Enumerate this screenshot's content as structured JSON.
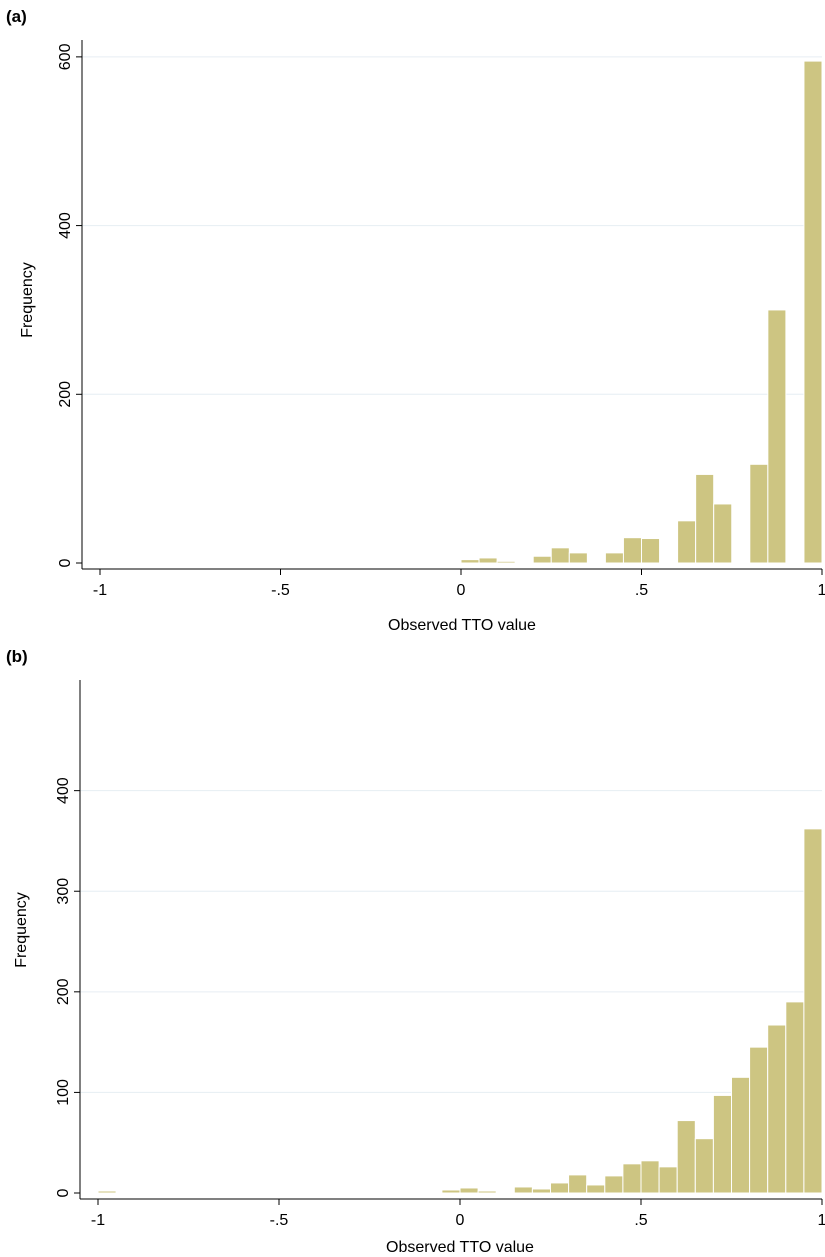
{
  "figure": {
    "background": "#ffffff",
    "bar_fill": "#cdc582",
    "bar_stroke": "#ffffff",
    "grid_color": "#e6eef3",
    "axis_color": "#000000"
  },
  "chart_data": [
    {
      "panel_label": "(a)",
      "type": "bar",
      "histogram": true,
      "xlabel": "Observed TTO value",
      "ylabel": "Frequency",
      "xlim": [
        -1,
        1
      ],
      "ylim": [
        0,
        620
      ],
      "bin_width": 0.05,
      "grid": true,
      "x_ticks": [
        -1,
        -0.5,
        0,
        0.5,
        1
      ],
      "x_tick_labels": [
        "-1",
        "-.5",
        "0",
        ".5",
        "1"
      ],
      "y_ticks": [
        0,
        200,
        400,
        600
      ],
      "y_tick_labels": [
        "0",
        "200",
        "400",
        "600"
      ],
      "bins": [
        {
          "start": -1.0,
          "value": 1
        },
        {
          "start": -0.15,
          "value": 1
        },
        {
          "start": 0.0,
          "value": 4
        },
        {
          "start": 0.05,
          "value": 6
        },
        {
          "start": 0.1,
          "value": 2
        },
        {
          "start": 0.2,
          "value": 8
        },
        {
          "start": 0.25,
          "value": 18
        },
        {
          "start": 0.3,
          "value": 12
        },
        {
          "start": 0.4,
          "value": 12
        },
        {
          "start": 0.45,
          "value": 30
        },
        {
          "start": 0.5,
          "value": 29
        },
        {
          "start": 0.6,
          "value": 50
        },
        {
          "start": 0.65,
          "value": 105
        },
        {
          "start": 0.7,
          "value": 70
        },
        {
          "start": 0.8,
          "value": 117
        },
        {
          "start": 0.85,
          "value": 300
        },
        {
          "start": 0.95,
          "value": 595
        }
      ]
    },
    {
      "panel_label": "(b)",
      "type": "bar",
      "histogram": true,
      "xlabel": "Observed TTO value",
      "ylabel": "Frequency",
      "xlim": [
        -1,
        1
      ],
      "ylim": [
        0,
        510
      ],
      "bin_width": 0.05,
      "grid": true,
      "x_ticks": [
        -1,
        -0.5,
        0,
        0.5,
        1
      ],
      "x_tick_labels": [
        "-1",
        "-.5",
        "0",
        ".5",
        "1"
      ],
      "y_ticks": [
        0,
        100,
        200,
        300,
        400
      ],
      "y_tick_labels": [
        "0",
        "100",
        "200",
        "300",
        "400"
      ],
      "bins": [
        {
          "start": -1.0,
          "value": 2
        },
        {
          "start": -0.05,
          "value": 3
        },
        {
          "start": 0.0,
          "value": 5
        },
        {
          "start": 0.05,
          "value": 2
        },
        {
          "start": 0.15,
          "value": 6
        },
        {
          "start": 0.2,
          "value": 4
        },
        {
          "start": 0.25,
          "value": 10
        },
        {
          "start": 0.3,
          "value": 18
        },
        {
          "start": 0.35,
          "value": 8
        },
        {
          "start": 0.4,
          "value": 17
        },
        {
          "start": 0.45,
          "value": 29
        },
        {
          "start": 0.5,
          "value": 32
        },
        {
          "start": 0.55,
          "value": 26
        },
        {
          "start": 0.6,
          "value": 72
        },
        {
          "start": 0.65,
          "value": 54
        },
        {
          "start": 0.7,
          "value": 97
        },
        {
          "start": 0.75,
          "value": 115
        },
        {
          "start": 0.8,
          "value": 145
        },
        {
          "start": 0.85,
          "value": 167
        },
        {
          "start": 0.9,
          "value": 190
        },
        {
          "start": 0.95,
          "value": 362
        }
      ]
    }
  ]
}
